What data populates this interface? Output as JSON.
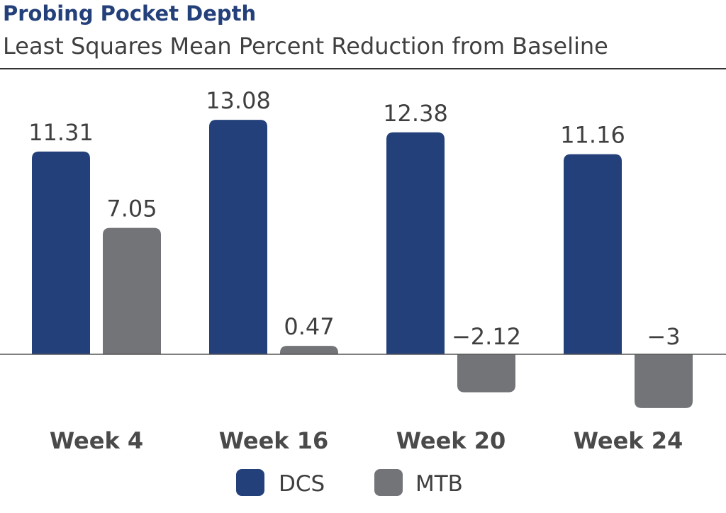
{
  "title": "Probing Pocket Depth",
  "subtitle": "Least Squares Mean Percent Reduction from Baseline",
  "chart_data": {
    "type": "bar",
    "title": "Probing Pocket Depth",
    "subtitle": "Least Squares Mean Percent Reduction from Baseline",
    "categories": [
      "Week 4",
      "Week 16",
      "Week 20",
      "Week 24"
    ],
    "series": [
      {
        "name": "DCS",
        "color": "#24407a",
        "values": [
          11.31,
          13.08,
          12.38,
          11.16
        ],
        "labels": [
          "11.31",
          "13.08",
          "12.38",
          "11.16"
        ]
      },
      {
        "name": "MTB",
        "color": "#737478",
        "values": [
          7.05,
          0.47,
          -2.12,
          -3
        ],
        "labels": [
          "7.05",
          "0.47",
          "−2.12",
          "−3"
        ]
      }
    ],
    "legend": {
      "position": "bottom",
      "entries": [
        "DCS",
        "MTB"
      ]
    },
    "grid": false
  }
}
